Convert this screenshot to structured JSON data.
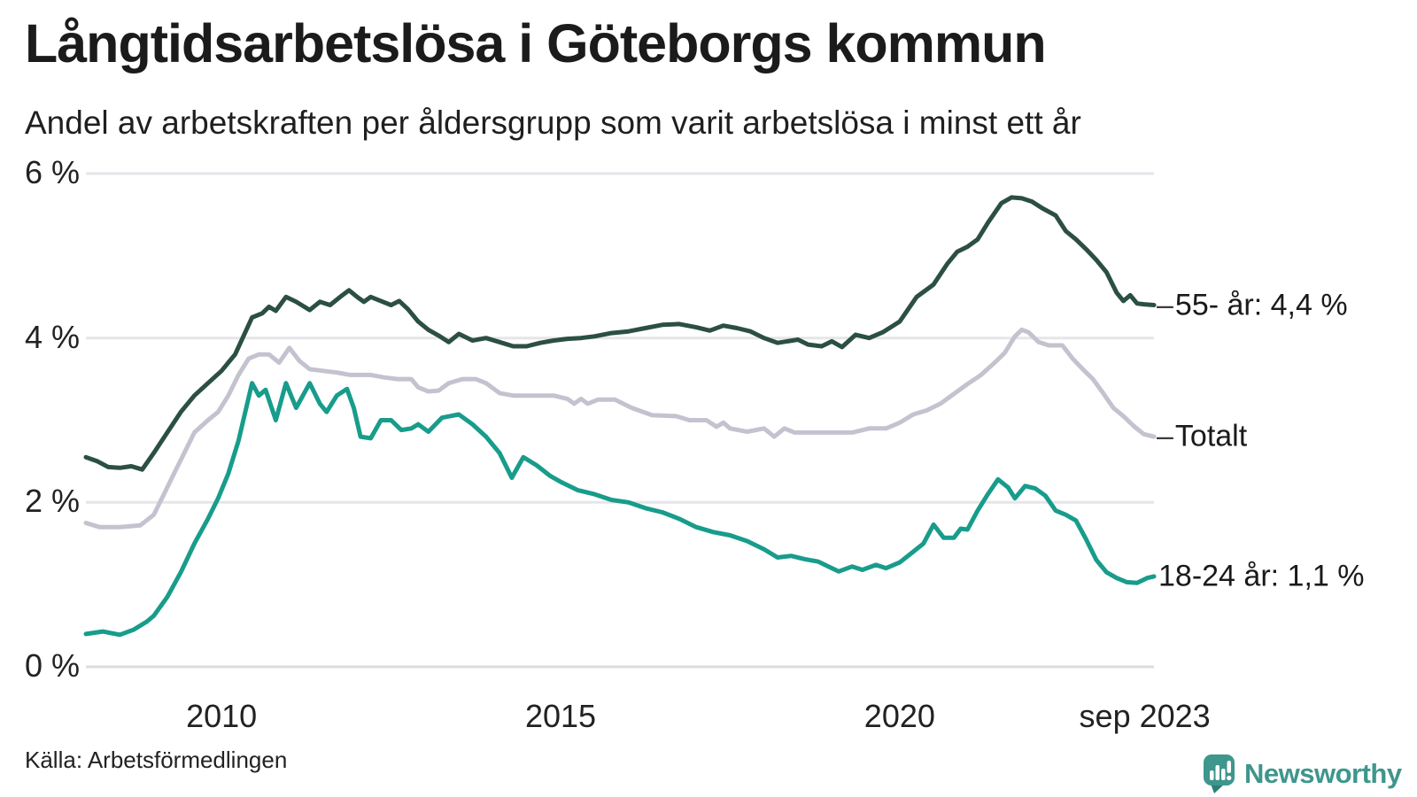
{
  "title": "Långtidsarbetslösa i Göteborgs kommun",
  "subtitle": "Andel av arbetskraften per åldersgrupp som varit arbetslösa i minst ett år",
  "source": "Källa: Arbetsförmedlingen",
  "brand": {
    "name": "Newsworthy",
    "color": "#3E968C",
    "icon": "newsworthy-speech-bubble-bar-chart-icon",
    "icon_tail_color": "#2E7D78"
  },
  "colors": {
    "background": "#FFFFFF",
    "grid": "#E6E5EA",
    "baseline": "#DDDCE3",
    "title_text": "#1B1B1B",
    "tick_text": "#222222",
    "annotation_text": "#1A1A1A",
    "connector_dash": "#3C3C3C"
  },
  "chart_data": {
    "type": "line",
    "title": "Långtidsarbetslösa i Göteborgs kommun",
    "subtitle": "Andel av arbetskraften per åldersgrupp som varit arbetslösa i minst ett år",
    "xlabel": "",
    "ylabel": "",
    "unit": "%",
    "grid": true,
    "legend_position": "end-of-line-labels-right",
    "x_range": [
      2008.0,
      2023.75
    ],
    "ylim": [
      0,
      6
    ],
    "x_axis": {
      "ticks": [
        {
          "t": 2010,
          "label": "2010"
        },
        {
          "t": 2015,
          "label": "2015"
        },
        {
          "t": 2020,
          "label": "2020"
        },
        {
          "t": 2023.75,
          "label": "sep 2023"
        }
      ]
    },
    "y_axis": {
      "ticks": [
        {
          "v": 6,
          "label": "6 %"
        },
        {
          "v": 4,
          "label": "4 %"
        },
        {
          "v": 2,
          "label": "2 %"
        },
        {
          "v": 0,
          "label": "0 %"
        }
      ]
    },
    "series": [
      {
        "id": "55-ar",
        "name": "55- år",
        "end_label_dash": "–",
        "end_label": "55- år: 4,4 %",
        "last_value": 4.4,
        "color": "#2C4F43",
        "points": [
          [
            2008.0,
            2.55
          ],
          [
            2008.17,
            2.5
          ],
          [
            2008.33,
            2.43
          ],
          [
            2008.5,
            2.42
          ],
          [
            2008.67,
            2.44
          ],
          [
            2008.83,
            2.4
          ],
          [
            2009.0,
            2.6
          ],
          [
            2009.2,
            2.85
          ],
          [
            2009.4,
            3.1
          ],
          [
            2009.6,
            3.3
          ],
          [
            2009.8,
            3.45
          ],
          [
            2010.0,
            3.6
          ],
          [
            2010.2,
            3.8
          ],
          [
            2010.45,
            4.25
          ],
          [
            2010.6,
            4.3
          ],
          [
            2010.7,
            4.38
          ],
          [
            2010.8,
            4.33
          ],
          [
            2010.95,
            4.5
          ],
          [
            2011.1,
            4.44
          ],
          [
            2011.3,
            4.34
          ],
          [
            2011.45,
            4.44
          ],
          [
            2011.6,
            4.4
          ],
          [
            2011.75,
            4.5
          ],
          [
            2011.88,
            4.58
          ],
          [
            2012.0,
            4.5
          ],
          [
            2012.1,
            4.44
          ],
          [
            2012.2,
            4.5
          ],
          [
            2012.35,
            4.45
          ],
          [
            2012.5,
            4.4
          ],
          [
            2012.62,
            4.45
          ],
          [
            2012.75,
            4.35
          ],
          [
            2012.9,
            4.2
          ],
          [
            2013.05,
            4.1
          ],
          [
            2013.2,
            4.03
          ],
          [
            2013.35,
            3.95
          ],
          [
            2013.5,
            4.05
          ],
          [
            2013.7,
            3.97
          ],
          [
            2013.9,
            4.0
          ],
          [
            2014.1,
            3.95
          ],
          [
            2014.3,
            3.9
          ],
          [
            2014.5,
            3.9
          ],
          [
            2014.7,
            3.94
          ],
          [
            2014.9,
            3.97
          ],
          [
            2015.1,
            3.99
          ],
          [
            2015.3,
            4.0
          ],
          [
            2015.5,
            4.02
          ],
          [
            2015.75,
            4.06
          ],
          [
            2016.0,
            4.08
          ],
          [
            2016.25,
            4.12
          ],
          [
            2016.5,
            4.16
          ],
          [
            2016.75,
            4.17
          ],
          [
            2017.0,
            4.13
          ],
          [
            2017.2,
            4.09
          ],
          [
            2017.4,
            4.15
          ],
          [
            2017.6,
            4.12
          ],
          [
            2017.8,
            4.08
          ],
          [
            2018.0,
            4.0
          ],
          [
            2018.2,
            3.94
          ],
          [
            2018.5,
            3.98
          ],
          [
            2018.65,
            3.92
          ],
          [
            2018.85,
            3.9
          ],
          [
            2019.0,
            3.96
          ],
          [
            2019.15,
            3.89
          ],
          [
            2019.35,
            4.04
          ],
          [
            2019.55,
            4.0
          ],
          [
            2019.75,
            4.07
          ],
          [
            2020.0,
            4.2
          ],
          [
            2020.25,
            4.5
          ],
          [
            2020.5,
            4.65
          ],
          [
            2020.7,
            4.9
          ],
          [
            2020.85,
            5.05
          ],
          [
            2021.0,
            5.11
          ],
          [
            2021.15,
            5.2
          ],
          [
            2021.3,
            5.4
          ],
          [
            2021.5,
            5.64
          ],
          [
            2021.65,
            5.71
          ],
          [
            2021.8,
            5.7
          ],
          [
            2021.95,
            5.66
          ],
          [
            2022.1,
            5.58
          ],
          [
            2022.3,
            5.49
          ],
          [
            2022.45,
            5.3
          ],
          [
            2022.6,
            5.2
          ],
          [
            2022.75,
            5.08
          ],
          [
            2022.9,
            4.95
          ],
          [
            2023.05,
            4.8
          ],
          [
            2023.2,
            4.55
          ],
          [
            2023.3,
            4.45
          ],
          [
            2023.4,
            4.52
          ],
          [
            2023.5,
            4.42
          ],
          [
            2023.6,
            4.41
          ],
          [
            2023.75,
            4.4
          ]
        ]
      },
      {
        "id": "totalt",
        "name": "Totalt",
        "end_label_dash": "–",
        "end_label": "Totalt",
        "last_value": 2.8,
        "color": "#C5C2D0",
        "points": [
          [
            2008.0,
            1.75
          ],
          [
            2008.2,
            1.7
          ],
          [
            2008.5,
            1.7
          ],
          [
            2008.8,
            1.72
          ],
          [
            2009.0,
            1.85
          ],
          [
            2009.15,
            2.1
          ],
          [
            2009.3,
            2.35
          ],
          [
            2009.45,
            2.6
          ],
          [
            2009.6,
            2.85
          ],
          [
            2009.8,
            3.0
          ],
          [
            2009.95,
            3.1
          ],
          [
            2010.1,
            3.3
          ],
          [
            2010.25,
            3.55
          ],
          [
            2010.4,
            3.75
          ],
          [
            2010.55,
            3.8
          ],
          [
            2010.7,
            3.8
          ],
          [
            2010.85,
            3.7
          ],
          [
            2011.0,
            3.88
          ],
          [
            2011.15,
            3.72
          ],
          [
            2011.3,
            3.62
          ],
          [
            2011.5,
            3.6
          ],
          [
            2011.7,
            3.58
          ],
          [
            2011.9,
            3.55
          ],
          [
            2012.2,
            3.55
          ],
          [
            2012.4,
            3.52
          ],
          [
            2012.6,
            3.5
          ],
          [
            2012.8,
            3.5
          ],
          [
            2012.9,
            3.4
          ],
          [
            2013.05,
            3.35
          ],
          [
            2013.2,
            3.36
          ],
          [
            2013.35,
            3.45
          ],
          [
            2013.55,
            3.5
          ],
          [
            2013.75,
            3.5
          ],
          [
            2013.9,
            3.45
          ],
          [
            2014.1,
            3.33
          ],
          [
            2014.3,
            3.3
          ],
          [
            2014.6,
            3.3
          ],
          [
            2014.9,
            3.3
          ],
          [
            2015.1,
            3.26
          ],
          [
            2015.2,
            3.2
          ],
          [
            2015.3,
            3.26
          ],
          [
            2015.4,
            3.2
          ],
          [
            2015.55,
            3.25
          ],
          [
            2015.8,
            3.25
          ],
          [
            2016.05,
            3.15
          ],
          [
            2016.35,
            3.06
          ],
          [
            2016.7,
            3.05
          ],
          [
            2016.9,
            3.0
          ],
          [
            2017.15,
            3.0
          ],
          [
            2017.3,
            2.92
          ],
          [
            2017.4,
            2.97
          ],
          [
            2017.5,
            2.9
          ],
          [
            2017.75,
            2.86
          ],
          [
            2018.0,
            2.9
          ],
          [
            2018.15,
            2.8
          ],
          [
            2018.3,
            2.9
          ],
          [
            2018.45,
            2.85
          ],
          [
            2018.7,
            2.85
          ],
          [
            2019.0,
            2.85
          ],
          [
            2019.3,
            2.85
          ],
          [
            2019.55,
            2.9
          ],
          [
            2019.8,
            2.9
          ],
          [
            2020.0,
            2.97
          ],
          [
            2020.2,
            3.07
          ],
          [
            2020.4,
            3.12
          ],
          [
            2020.6,
            3.2
          ],
          [
            2020.8,
            3.32
          ],
          [
            2021.0,
            3.44
          ],
          [
            2021.2,
            3.55
          ],
          [
            2021.4,
            3.7
          ],
          [
            2021.55,
            3.82
          ],
          [
            2021.7,
            4.02
          ],
          [
            2021.8,
            4.1
          ],
          [
            2021.9,
            4.07
          ],
          [
            2022.05,
            3.95
          ],
          [
            2022.2,
            3.91
          ],
          [
            2022.4,
            3.91
          ],
          [
            2022.55,
            3.75
          ],
          [
            2022.7,
            3.62
          ],
          [
            2022.85,
            3.5
          ],
          [
            2023.0,
            3.33
          ],
          [
            2023.15,
            3.15
          ],
          [
            2023.3,
            3.05
          ],
          [
            2023.45,
            2.93
          ],
          [
            2023.6,
            2.83
          ],
          [
            2023.75,
            2.8
          ]
        ]
      },
      {
        "id": "18-24-ar",
        "name": "18-24 år",
        "end_label_dash": "",
        "end_label": "18-24 år: 1,1 %",
        "last_value": 1.1,
        "color": "#189C8B",
        "points": [
          [
            2008.0,
            0.4
          ],
          [
            2008.25,
            0.43
          ],
          [
            2008.5,
            0.39
          ],
          [
            2008.7,
            0.45
          ],
          [
            2008.9,
            0.55
          ],
          [
            2009.0,
            0.62
          ],
          [
            2009.2,
            0.85
          ],
          [
            2009.4,
            1.15
          ],
          [
            2009.6,
            1.5
          ],
          [
            2009.8,
            1.8
          ],
          [
            2009.95,
            2.05
          ],
          [
            2010.1,
            2.35
          ],
          [
            2010.25,
            2.75
          ],
          [
            2010.45,
            3.45
          ],
          [
            2010.55,
            3.3
          ],
          [
            2010.65,
            3.37
          ],
          [
            2010.8,
            3.0
          ],
          [
            2010.95,
            3.45
          ],
          [
            2011.1,
            3.15
          ],
          [
            2011.3,
            3.45
          ],
          [
            2011.45,
            3.2
          ],
          [
            2011.55,
            3.1
          ],
          [
            2011.7,
            3.3
          ],
          [
            2011.85,
            3.38
          ],
          [
            2011.95,
            3.15
          ],
          [
            2012.05,
            2.8
          ],
          [
            2012.2,
            2.78
          ],
          [
            2012.35,
            3.0
          ],
          [
            2012.5,
            3.0
          ],
          [
            2012.65,
            2.88
          ],
          [
            2012.8,
            2.9
          ],
          [
            2012.9,
            2.95
          ],
          [
            2013.05,
            2.86
          ],
          [
            2013.25,
            3.03
          ],
          [
            2013.5,
            3.07
          ],
          [
            2013.7,
            2.95
          ],
          [
            2013.9,
            2.8
          ],
          [
            2014.1,
            2.6
          ],
          [
            2014.28,
            2.3
          ],
          [
            2014.45,
            2.55
          ],
          [
            2014.65,
            2.45
          ],
          [
            2014.85,
            2.32
          ],
          [
            2015.0,
            2.25
          ],
          [
            2015.25,
            2.15
          ],
          [
            2015.5,
            2.1
          ],
          [
            2015.75,
            2.03
          ],
          [
            2016.0,
            2.0
          ],
          [
            2016.25,
            1.93
          ],
          [
            2016.5,
            1.88
          ],
          [
            2016.75,
            1.8
          ],
          [
            2017.0,
            1.7
          ],
          [
            2017.25,
            1.64
          ],
          [
            2017.5,
            1.6
          ],
          [
            2017.75,
            1.53
          ],
          [
            2018.0,
            1.43
          ],
          [
            2018.2,
            1.33
          ],
          [
            2018.4,
            1.35
          ],
          [
            2018.6,
            1.31
          ],
          [
            2018.8,
            1.28
          ],
          [
            2019.0,
            1.2
          ],
          [
            2019.1,
            1.16
          ],
          [
            2019.3,
            1.22
          ],
          [
            2019.45,
            1.18
          ],
          [
            2019.65,
            1.24
          ],
          [
            2019.8,
            1.2
          ],
          [
            2020.0,
            1.27
          ],
          [
            2020.2,
            1.4
          ],
          [
            2020.35,
            1.5
          ],
          [
            2020.5,
            1.73
          ],
          [
            2020.65,
            1.57
          ],
          [
            2020.8,
            1.57
          ],
          [
            2020.9,
            1.68
          ],
          [
            2021.0,
            1.67
          ],
          [
            2021.15,
            1.9
          ],
          [
            2021.3,
            2.1
          ],
          [
            2021.45,
            2.28
          ],
          [
            2021.6,
            2.18
          ],
          [
            2021.7,
            2.05
          ],
          [
            2021.85,
            2.2
          ],
          [
            2022.0,
            2.17
          ],
          [
            2022.15,
            2.08
          ],
          [
            2022.3,
            1.9
          ],
          [
            2022.45,
            1.85
          ],
          [
            2022.6,
            1.78
          ],
          [
            2022.75,
            1.55
          ],
          [
            2022.9,
            1.3
          ],
          [
            2023.05,
            1.15
          ],
          [
            2023.2,
            1.08
          ],
          [
            2023.35,
            1.03
          ],
          [
            2023.5,
            1.02
          ],
          [
            2023.65,
            1.08
          ],
          [
            2023.75,
            1.1
          ]
        ]
      }
    ]
  }
}
